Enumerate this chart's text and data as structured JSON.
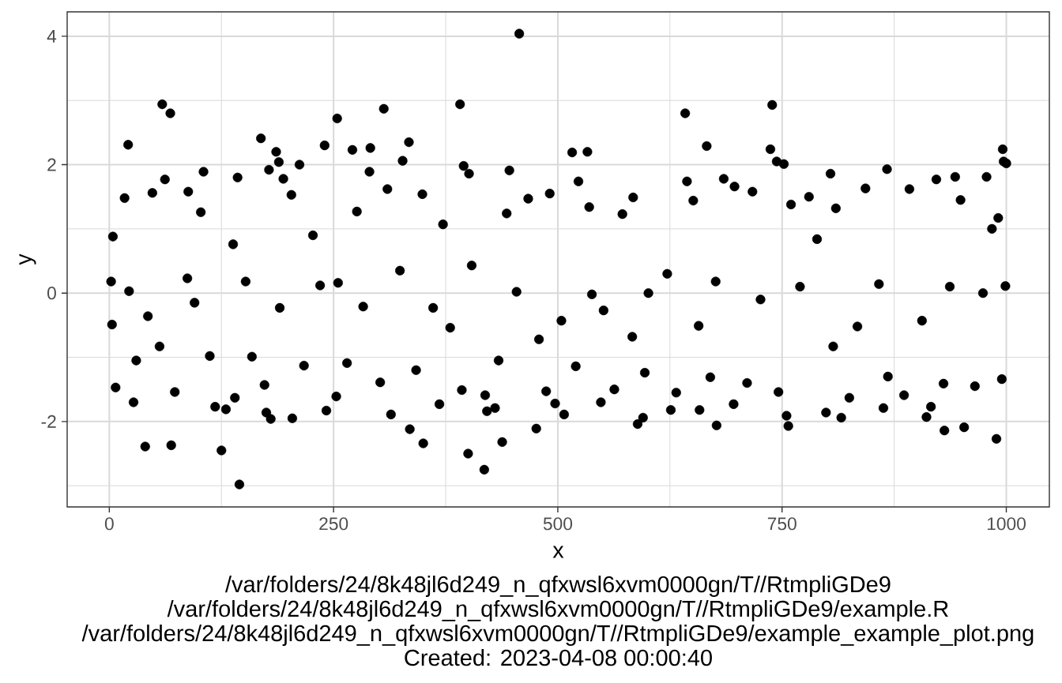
{
  "chart_data": {
    "type": "scatter",
    "xlabel": "x",
    "ylabel": "y",
    "x": [
      21,
      59,
      62,
      68,
      105,
      143,
      169,
      178,
      186,
      189,
      194,
      212,
      240,
      254,
      271,
      290,
      291,
      306,
      327,
      334,
      391,
      395,
      401,
      446,
      457,
      516,
      523,
      533,
      642,
      644,
      666,
      685,
      737,
      739,
      744,
      752,
      804,
      867,
      922,
      943,
      978,
      996,
      997,
      1000,
      27,
      40,
      69,
      118,
      125,
      130,
      145,
      175,
      180,
      204,
      242,
      314,
      335,
      350,
      368,
      400,
      418,
      421,
      430,
      438,
      476,
      497,
      507,
      548,
      589,
      595,
      626,
      658,
      677,
      696,
      755,
      757,
      799,
      816,
      863,
      911,
      916,
      931,
      953,
      989,
      2,
      3,
      4,
      7,
      17,
      22,
      30,
      43,
      48,
      56,
      73,
      87,
      88,
      95,
      102,
      112,
      138,
      140,
      152,
      159,
      173,
      190,
      203,
      217,
      227,
      235,
      253,
      255,
      265,
      276,
      283,
      302,
      310,
      324,
      342,
      349,
      361,
      372,
      380,
      393,
      404,
      419,
      434,
      443,
      454,
      467,
      479,
      487,
      491,
      504,
      520,
      535,
      538,
      551,
      563,
      572,
      583,
      584,
      597,
      601,
      622,
      632,
      651,
      657,
      670,
      676,
      697,
      711,
      717,
      726,
      746,
      760,
      770,
      780,
      789,
      807,
      810,
      825,
      834,
      843,
      858,
      868,
      886,
      892,
      906,
      930,
      937,
      949,
      965,
      974,
      984,
      991,
      995,
      999
    ],
    "values": [
      2.31,
      2.94,
      1.77,
      2.8,
      1.89,
      1.8,
      2.41,
      1.92,
      2.2,
      2.04,
      1.78,
      2.0,
      2.3,
      2.72,
      2.23,
      1.89,
      2.26,
      2.87,
      2.06,
      2.35,
      2.94,
      1.98,
      1.86,
      1.91,
      4.04,
      2.19,
      1.74,
      2.2,
      2.8,
      1.74,
      2.29,
      1.78,
      2.24,
      2.93,
      2.05,
      2.01,
      1.86,
      1.93,
      1.77,
      1.81,
      1.81,
      2.24,
      2.05,
      2.02,
      -1.7,
      -2.39,
      -2.37,
      -1.77,
      -2.45,
      -1.81,
      -2.98,
      -1.86,
      -1.96,
      -1.95,
      -1.83,
      -1.89,
      -2.12,
      -2.34,
      -1.73,
      -2.5,
      -2.75,
      -1.84,
      -1.79,
      -2.32,
      -2.11,
      -1.72,
      -1.89,
      -1.7,
      -2.04,
      -1.94,
      -1.82,
      -1.82,
      -2.06,
      -1.73,
      -1.91,
      -2.07,
      -1.86,
      -1.94,
      -1.79,
      -1.93,
      -1.77,
      -2.14,
      -2.09,
      -2.27,
      0.18,
      -0.49,
      0.88,
      -1.47,
      1.48,
      0.03,
      -1.05,
      -0.36,
      1.56,
      -0.83,
      -1.54,
      0.23,
      1.58,
      -0.15,
      1.26,
      -0.98,
      0.76,
      -1.63,
      0.18,
      -0.99,
      -1.43,
      -0.23,
      1.53,
      -1.13,
      0.9,
      0.12,
      -1.61,
      0.16,
      -1.09,
      1.27,
      -0.21,
      -1.39,
      1.62,
      0.35,
      -1.2,
      1.54,
      -0.23,
      1.07,
      -0.54,
      -1.51,
      0.43,
      -1.59,
      -1.05,
      1.24,
      0.02,
      1.47,
      -0.72,
      -1.53,
      1.55,
      -0.43,
      -1.14,
      1.34,
      -0.02,
      -0.27,
      -1.5,
      1.23,
      -0.68,
      1.49,
      -1.24,
      0.0,
      0.3,
      -1.55,
      1.44,
      -0.51,
      -1.31,
      0.18,
      1.66,
      -1.4,
      1.58,
      -0.1,
      -1.54,
      1.38,
      0.1,
      1.5,
      0.84,
      -0.83,
      1.32,
      -1.63,
      -0.52,
      1.63,
      0.14,
      -1.3,
      -1.59,
      1.62,
      -0.43,
      -1.41,
      0.1,
      1.45,
      -1.45,
      0.0,
      1.0,
      1.17,
      -1.34,
      0.11
    ],
    "color": "#000000",
    "marker": "circle",
    "grid": true,
    "xlim": [
      -47,
      1048
    ],
    "ylim": [
      -3.33,
      4.38
    ],
    "xticks": [
      0,
      250,
      500,
      750,
      1000
    ],
    "yticks": [
      -2,
      0,
      2,
      4
    ],
    "annotations": [
      "/var/folders/24/8k48jl6d249_n_qfxwsl6xvm0000gn/T//RtmpliGDe9",
      "/var/folders/24/8k48jl6d249_n_qfxwsl6xvm0000gn/T//RtmpliGDe9/example.R",
      "/var/folders/24/8k48jl6d249_n_qfxwsl6xvm0000gn/T//RtmpliGDe9/example_example_plot.png",
      "Created: 2023-04-08 00:00:40"
    ]
  }
}
